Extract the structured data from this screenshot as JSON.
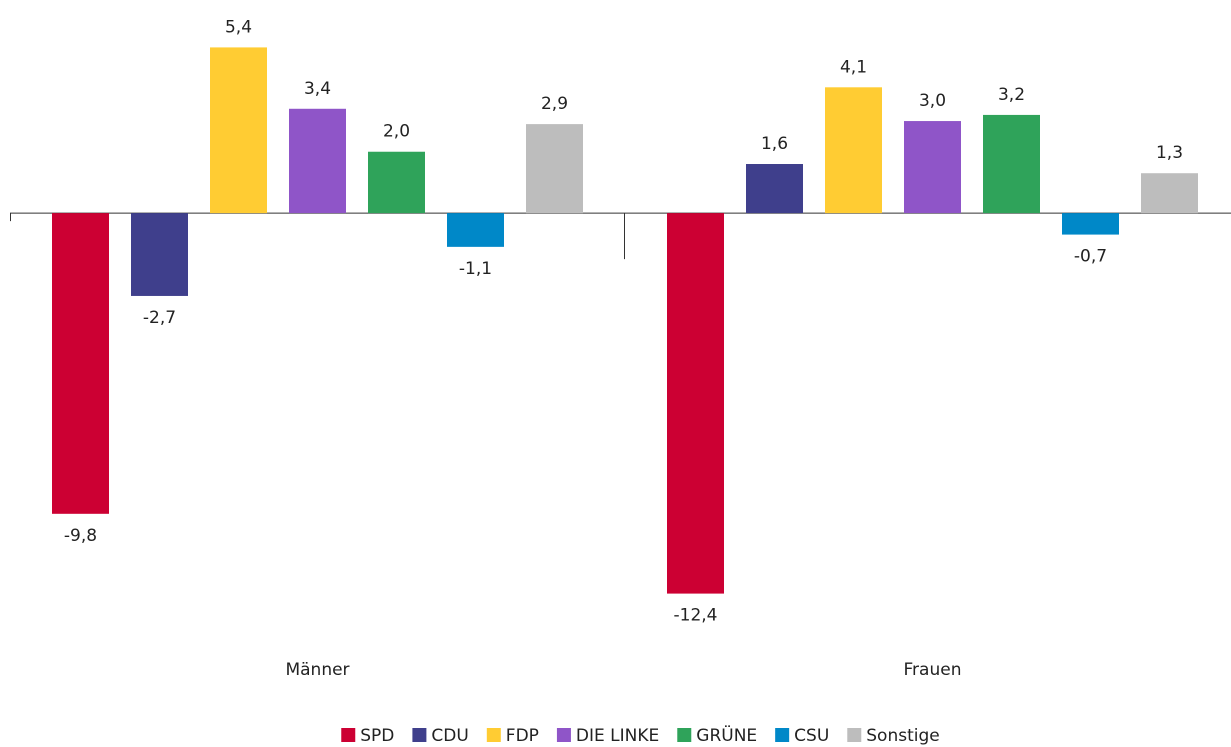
{
  "chart_data": {
    "type": "bar",
    "categories": [
      "Männer",
      "Frauen"
    ],
    "series": [
      {
        "name": "SPD",
        "color": "#cc0033",
        "values": [
          -9.8,
          -12.4
        ],
        "value_labels": [
          "-9,8",
          "-12,4"
        ]
      },
      {
        "name": "CDU",
        "color": "#3f3f8c",
        "values": [
          -2.7,
          1.6
        ],
        "value_labels": [
          "-2,7",
          "1,6"
        ]
      },
      {
        "name": "FDP",
        "color": "#ffcc33",
        "values": [
          5.4,
          4.1
        ],
        "value_labels": [
          "5,4",
          "4,1"
        ]
      },
      {
        "name": "DIE LINKE",
        "color": "#8f55c8",
        "values": [
          3.4,
          3.0
        ],
        "value_labels": [
          "3,4",
          "3,0"
        ]
      },
      {
        "name": "GRÜNE",
        "color": "#2fa35a",
        "values": [
          2.0,
          3.2
        ],
        "value_labels": [
          "2,0",
          "3,2"
        ]
      },
      {
        "name": "CSU",
        "color": "#0088c8",
        "values": [
          -1.1,
          -0.7
        ],
        "value_labels": [
          "-1,1",
          "-0,7"
        ]
      },
      {
        "name": "Sonstige",
        "color": "#bdbdbd",
        "values": [
          2.9,
          1.3
        ],
        "value_labels": [
          "2,9",
          "1,3"
        ]
      }
    ],
    "ylim": [
      -13,
      6
    ],
    "legend": "bottom"
  }
}
